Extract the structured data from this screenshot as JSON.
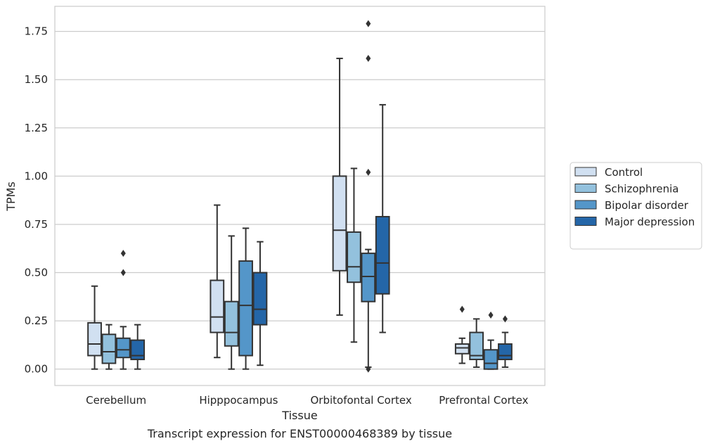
{
  "chart_data": {
    "type": "box",
    "caption": "Transcript expression for ENST00000468389 by tissue",
    "xlabel": "Tissue",
    "ylabel": "TPMs",
    "ylim": [
      -0.085,
      1.88
    ],
    "yticks": [
      "0.00",
      "0.25",
      "0.50",
      "0.75",
      "1.00",
      "1.25",
      "1.50",
      "1.75"
    ],
    "grid": "horizontal",
    "legend_position": "right",
    "categories": [
      "Cerebellum",
      "Hipppocampus",
      "Orbitofontal Cortex",
      "Prefrontal Cortex"
    ],
    "series": [
      {
        "name": "Control",
        "color": "#d1e0f1",
        "boxes": [
          {
            "whislo": 0.0,
            "q1": 0.07,
            "med": 0.13,
            "q3": 0.24,
            "whishi": 0.43,
            "fliers": []
          },
          {
            "whislo": 0.06,
            "q1": 0.19,
            "med": 0.27,
            "q3": 0.46,
            "whishi": 0.85,
            "fliers": []
          },
          {
            "whislo": 0.28,
            "q1": 0.51,
            "med": 0.72,
            "q3": 1.0,
            "whishi": 1.61,
            "fliers": []
          },
          {
            "whislo": 0.03,
            "q1": 0.08,
            "med": 0.11,
            "q3": 0.13,
            "whishi": 0.16,
            "fliers": [
              0.31
            ]
          }
        ]
      },
      {
        "name": "Schizophrenia",
        "color": "#93c1dd",
        "boxes": [
          {
            "whislo": 0.0,
            "q1": 0.03,
            "med": 0.09,
            "q3": 0.18,
            "whishi": 0.23,
            "fliers": []
          },
          {
            "whislo": 0.0,
            "q1": 0.12,
            "med": 0.19,
            "q3": 0.35,
            "whishi": 0.69,
            "fliers": []
          },
          {
            "whislo": 0.14,
            "q1": 0.45,
            "med": 0.53,
            "q3": 0.71,
            "whishi": 1.04,
            "fliers": []
          },
          {
            "whislo": 0.01,
            "q1": 0.05,
            "med": 0.07,
            "q3": 0.19,
            "whishi": 0.26,
            "fliers": []
          }
        ]
      },
      {
        "name": "Bipolar disorder",
        "color": "#5496c9",
        "boxes": [
          {
            "whislo": 0.0,
            "q1": 0.06,
            "med": 0.1,
            "q3": 0.16,
            "whishi": 0.22,
            "fliers": [
              0.5,
              0.6
            ]
          },
          {
            "whislo": 0.0,
            "q1": 0.07,
            "med": 0.33,
            "q3": 0.56,
            "whishi": 0.73,
            "fliers": []
          },
          {
            "whislo": 0.01,
            "q1": 0.35,
            "med": 0.48,
            "q3": 0.6,
            "whishi": 0.62,
            "fliers": [
              0.0,
              1.02,
              1.61,
              1.79
            ]
          },
          {
            "whislo": 0.0,
            "q1": 0.0,
            "med": 0.03,
            "q3": 0.1,
            "whishi": 0.15,
            "fliers": [
              0.28
            ]
          }
        ]
      },
      {
        "name": "Major depression",
        "color": "#2466a8",
        "boxes": [
          {
            "whislo": 0.0,
            "q1": 0.05,
            "med": 0.07,
            "q3": 0.15,
            "whishi": 0.23,
            "fliers": []
          },
          {
            "whislo": 0.02,
            "q1": 0.23,
            "med": 0.31,
            "q3": 0.5,
            "whishi": 0.66,
            "fliers": []
          },
          {
            "whislo": 0.19,
            "q1": 0.39,
            "med": 0.55,
            "q3": 0.79,
            "whishi": 1.37,
            "fliers": []
          },
          {
            "whislo": 0.01,
            "q1": 0.05,
            "med": 0.07,
            "q3": 0.13,
            "whishi": 0.19,
            "fliers": [
              0.26
            ]
          }
        ]
      }
    ]
  }
}
